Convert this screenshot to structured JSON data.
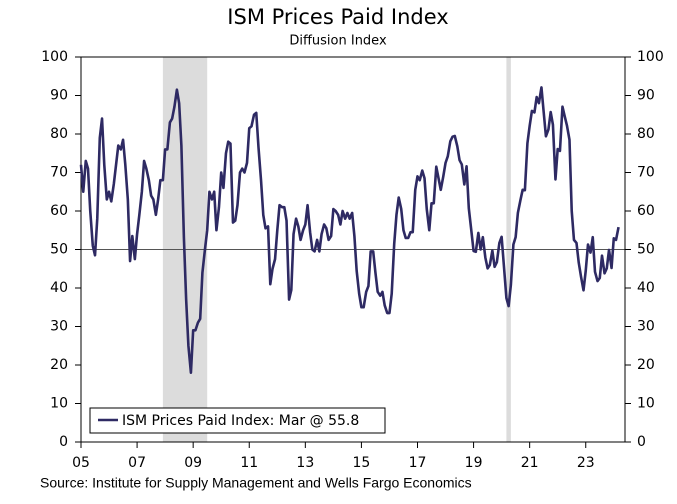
{
  "chart_data": {
    "type": "line",
    "title": "ISM Prices Paid Index",
    "subtitle": "Diffusion Index",
    "source": "Source: Institute for Supply Management and Wells Fargo Economics",
    "xlim": [
      2005,
      2024.4
    ],
    "xticks": [
      {
        "value": 2005,
        "label": "05"
      },
      {
        "value": 2007,
        "label": "07"
      },
      {
        "value": 2009,
        "label": "09"
      },
      {
        "value": 2011,
        "label": "11"
      },
      {
        "value": 2013,
        "label": "13"
      },
      {
        "value": 2015,
        "label": "15"
      },
      {
        "value": 2017,
        "label": "17"
      },
      {
        "value": 2019,
        "label": "19"
      },
      {
        "value": 2021,
        "label": "21"
      },
      {
        "value": 2023,
        "label": "23"
      }
    ],
    "ylim": [
      0,
      100
    ],
    "yticks": [
      0,
      10,
      20,
      30,
      40,
      50,
      60,
      70,
      80,
      90,
      100
    ],
    "reference_line": 50,
    "shading": [
      [
        2007.92,
        2009.5
      ],
      [
        2020.17,
        2020.33
      ]
    ],
    "shading_color": "#dcdcdc",
    "legend": "lower left",
    "x": [
      2005.0,
      2005.08,
      2005.17,
      2005.25,
      2005.33,
      2005.42,
      2005.5,
      2005.58,
      2005.67,
      2005.75,
      2005.83,
      2005.92,
      2006.0,
      2006.08,
      2006.17,
      2006.25,
      2006.33,
      2006.42,
      2006.5,
      2006.58,
      2006.67,
      2006.75,
      2006.83,
      2006.92,
      2007.0,
      2007.08,
      2007.17,
      2007.25,
      2007.33,
      2007.42,
      2007.5,
      2007.58,
      2007.67,
      2007.75,
      2007.83,
      2007.92,
      2008.0,
      2008.08,
      2008.17,
      2008.25,
      2008.33,
      2008.42,
      2008.5,
      2008.58,
      2008.67,
      2008.75,
      2008.83,
      2008.92,
      2009.0,
      2009.08,
      2009.17,
      2009.25,
      2009.33,
      2009.42,
      2009.5,
      2009.58,
      2009.67,
      2009.75,
      2009.83,
      2009.92,
      2010.0,
      2010.08,
      2010.17,
      2010.25,
      2010.33,
      2010.42,
      2010.5,
      2010.58,
      2010.67,
      2010.75,
      2010.83,
      2010.92,
      2011.0,
      2011.08,
      2011.17,
      2011.25,
      2011.33,
      2011.42,
      2011.5,
      2011.58,
      2011.67,
      2011.75,
      2011.83,
      2011.92,
      2012.0,
      2012.08,
      2012.17,
      2012.25,
      2012.33,
      2012.42,
      2012.5,
      2012.58,
      2012.67,
      2012.75,
      2012.83,
      2012.92,
      2013.0,
      2013.08,
      2013.17,
      2013.25,
      2013.33,
      2013.42,
      2013.5,
      2013.58,
      2013.67,
      2013.75,
      2013.83,
      2013.92,
      2014.0,
      2014.08,
      2014.17,
      2014.25,
      2014.33,
      2014.42,
      2014.5,
      2014.58,
      2014.67,
      2014.75,
      2014.83,
      2014.92,
      2015.0,
      2015.08,
      2015.17,
      2015.25,
      2015.33,
      2015.42,
      2015.5,
      2015.58,
      2015.67,
      2015.75,
      2015.83,
      2015.92,
      2016.0,
      2016.08,
      2016.17,
      2016.25,
      2016.33,
      2016.42,
      2016.5,
      2016.58,
      2016.67,
      2016.75,
      2016.83,
      2016.92,
      2017.0,
      2017.08,
      2017.17,
      2017.25,
      2017.33,
      2017.42,
      2017.5,
      2017.58,
      2017.67,
      2017.75,
      2017.83,
      2017.92,
      2018.0,
      2018.08,
      2018.17,
      2018.25,
      2018.33,
      2018.42,
      2018.5,
      2018.58,
      2018.67,
      2018.75,
      2018.83,
      2018.92,
      2019.0,
      2019.08,
      2019.17,
      2019.25,
      2019.33,
      2019.42,
      2019.5,
      2019.58,
      2019.67,
      2019.75,
      2019.83,
      2019.92,
      2020.0,
      2020.08,
      2020.17,
      2020.25,
      2020.33,
      2020.42,
      2020.5,
      2020.58,
      2020.67,
      2020.75,
      2020.83,
      2020.92,
      2021.0,
      2021.08,
      2021.17,
      2021.25,
      2021.33,
      2021.42,
      2021.5,
      2021.58,
      2021.67,
      2021.75,
      2021.83,
      2021.92,
      2022.0,
      2022.08,
      2022.17,
      2022.25,
      2022.33,
      2022.42,
      2022.5,
      2022.58,
      2022.67,
      2022.75,
      2022.83,
      2022.92,
      2023.0,
      2023.08,
      2023.17,
      2023.25,
      2023.33,
      2023.42,
      2023.5,
      2023.58,
      2023.67,
      2023.75,
      2023.83,
      2023.92,
      2024.0,
      2024.08,
      2024.17
    ],
    "series": [
      {
        "name": "ISM Prices Paid Index: Mar @ 55.8",
        "color": "#2e2a63",
        "values": [
          72,
          65,
          73,
          71,
          60,
          51,
          48.5,
          58,
          79,
          84,
          72,
          63,
          65,
          62.5,
          67,
          72,
          77,
          76,
          78.5,
          72,
          63,
          47,
          53.5,
          47.5,
          54,
          59,
          65,
          73,
          71,
          68,
          64,
          63,
          59,
          63,
          68,
          68,
          76,
          76,
          83,
          84,
          87,
          91.5,
          88,
          77,
          53,
          37,
          25,
          18,
          29,
          29,
          31,
          32,
          44,
          50,
          55,
          65,
          63,
          65,
          55,
          61,
          70,
          66,
          75,
          78,
          77.5,
          57,
          57.5,
          61.5,
          70,
          71,
          70,
          72.5,
          81.5,
          82,
          85,
          85.5,
          76.5,
          68,
          59,
          55.5,
          56,
          41,
          45,
          47.5,
          55,
          61.5,
          61,
          61,
          57.5,
          37,
          39.5,
          54,
          58,
          56,
          52.5,
          55,
          56.5,
          61.5,
          54.5,
          50,
          49.5,
          52.5,
          49.5,
          54,
          56.5,
          55.5,
          52.5,
          53.5,
          60.5,
          60,
          59,
          56.5,
          60,
          58,
          59.5,
          58,
          59.5,
          53.5,
          44.5,
          38.5,
          35,
          35,
          39,
          40.5,
          49.5,
          49.5,
          44,
          39,
          38,
          39,
          35.5,
          33.5,
          33.5,
          38.5,
          51.5,
          59,
          63.5,
          60.5,
          55,
          53,
          53,
          54.5,
          54.5,
          65.5,
          69,
          68,
          70.5,
          68.5,
          60.5,
          55,
          62,
          62,
          71.5,
          68.5,
          65.5,
          69,
          72.5,
          74.2,
          78.1,
          79.3,
          79.5,
          76.8,
          73.2,
          72.1,
          66.9,
          71.6,
          60.7,
          54.9,
          49.6,
          49.4,
          54.3,
          50,
          53.2,
          47.9,
          45.1,
          46,
          49.7,
          45.5,
          46.7,
          51.7,
          53.3,
          45.9,
          37.4,
          35.3,
          40.8,
          51.3,
          53.2,
          59.5,
          62.8,
          65.5,
          65.4,
          77.6,
          82.1,
          86,
          85.6,
          89.6,
          88,
          92.1,
          85.7,
          79.4,
          81.2,
          85.7,
          82.4,
          68.2,
          76.1,
          75.6,
          87.1,
          84.6,
          82.2,
          78.5,
          60,
          52.5,
          51.7,
          46.6,
          43,
          39.4,
          44.5,
          51.3,
          49.2,
          53.2,
          44.2,
          41.8,
          42.6,
          48.4,
          43.8,
          45.1,
          49.9,
          45.2,
          52.9,
          52.5,
          55.8
        ]
      }
    ]
  }
}
